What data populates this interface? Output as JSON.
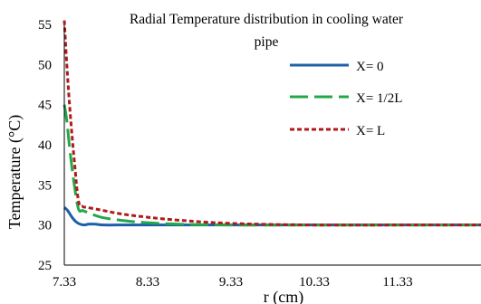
{
  "chart_data": {
    "type": "line",
    "title_line1": "Radial Temperature distribution in cooling water",
    "title_line2": "pipe",
    "xlabel": "r (cm)",
    "ylabel": "Temperature (°C)",
    "xlim": [
      7.33,
      12.33
    ],
    "ylim": [
      25,
      55
    ],
    "x_ticks": [
      7.33,
      8.33,
      9.33,
      10.33,
      11.33
    ],
    "x_tick_labels": [
      "7.33",
      "8.33",
      "9.33",
      "10.33",
      "11.33"
    ],
    "y_ticks": [
      25,
      30,
      35,
      40,
      45,
      50,
      55
    ],
    "y_tick_labels": [
      "25",
      "30",
      "35",
      "40",
      "45",
      "50",
      "55"
    ],
    "legend_position": "top-right",
    "series": [
      {
        "name": "X= 0",
        "color": "#1f5fa8",
        "style": "solid",
        "x": [
          7.33,
          7.37,
          7.42,
          7.47,
          7.52,
          7.57,
          7.62,
          7.7,
          7.8,
          8.0,
          8.5,
          9.33,
          10.33,
          11.33,
          12.33
        ],
        "y": [
          32.2,
          31.8,
          31.0,
          30.4,
          30.1,
          30.0,
          30.1,
          30.1,
          30.0,
          30.0,
          30.0,
          30.0,
          30.0,
          30.0,
          30.0
        ]
      },
      {
        "name": "X= 1/2L",
        "color": "#22a84a",
        "style": "long-dash",
        "x": [
          7.33,
          7.36,
          7.4,
          7.45,
          7.5,
          7.55,
          7.6,
          7.7,
          7.8,
          8.0,
          8.3,
          8.7,
          9.33,
          10.33,
          11.33,
          12.33
        ],
        "y": [
          45.0,
          43.0,
          39.0,
          35.0,
          32.0,
          31.8,
          31.6,
          31.2,
          30.9,
          30.6,
          30.3,
          30.1,
          30.0,
          30.0,
          30.0,
          30.0
        ]
      },
      {
        "name": "X= L",
        "color": "#b01a1a",
        "style": "short-dash",
        "x": [
          7.33,
          7.36,
          7.4,
          7.45,
          7.5,
          7.55,
          7.6,
          7.7,
          7.8,
          8.0,
          8.3,
          8.7,
          9.33,
          10.33,
          11.33,
          12.33
        ],
        "y": [
          55.5,
          50.0,
          44.0,
          38.0,
          33.0,
          32.3,
          32.2,
          32.0,
          31.8,
          31.4,
          31.0,
          30.6,
          30.2,
          30.0,
          30.0,
          30.0
        ]
      }
    ]
  }
}
